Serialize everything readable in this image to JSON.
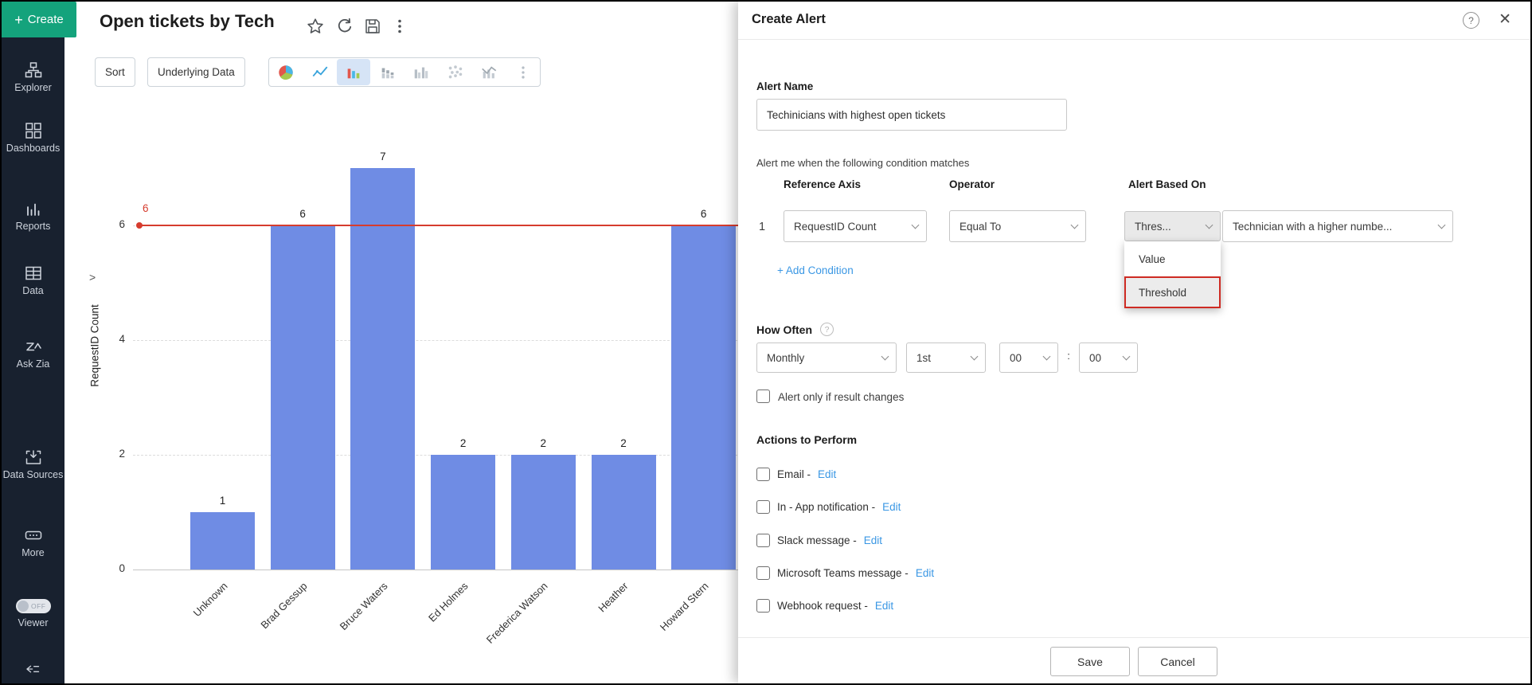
{
  "sidebar": {
    "create_button": {
      "plus_glyph": "+",
      "label": "Create"
    },
    "items": [
      {
        "icon": "explorer-icon",
        "label": "Explorer"
      },
      {
        "icon": "dashboards-icon",
        "label": "Dashboards"
      },
      {
        "icon": "reports-icon",
        "label": "Reports"
      },
      {
        "icon": "data-icon",
        "label": "Data"
      },
      {
        "icon": "ask-zia-icon",
        "label": "Ask Zia"
      },
      {
        "icon": "data-sources-icon",
        "label": "Data Sources"
      },
      {
        "icon": "more-icon",
        "label": "More"
      }
    ],
    "viewer": {
      "label": "Viewer",
      "state": "OFF"
    }
  },
  "header": {
    "title": "Open tickets by Tech",
    "icons": [
      "star-icon",
      "refresh-icon",
      "save-icon",
      "kebab-menu-icon"
    ]
  },
  "toolbar": {
    "sort_label": "Sort",
    "underlying_data_label": "Underlying Data",
    "chart_types": [
      {
        "icon": "pie-chart-icon",
        "selected": false
      },
      {
        "icon": "line-chart-icon",
        "selected": false
      },
      {
        "icon": "bar-chart-icon",
        "selected": true
      },
      {
        "icon": "stacked-bar-icon",
        "selected": false
      },
      {
        "icon": "grouped-bar-icon",
        "selected": false
      },
      {
        "icon": "scatter-plot-icon",
        "selected": false
      },
      {
        "icon": "combo-chart-icon",
        "selected": false
      },
      {
        "icon": "kebab-menu-icon",
        "selected": false
      }
    ]
  },
  "chart_data": {
    "type": "bar",
    "title": "Open tickets by Tech",
    "categories": [
      "Unknown",
      "Brad Gessup",
      "Bruce Waters",
      "Ed Holmes",
      "Frederica Watson",
      "Heather",
      "Howard Stern"
    ],
    "values": [
      1,
      6,
      7,
      2,
      2,
      2,
      6
    ],
    "xlabel": "",
    "ylabel": "RequestID Count",
    "y_axis_expander_glyph": ">",
    "yticks": [
      0,
      2,
      4,
      6
    ],
    "ylim": [
      0,
      7.6
    ],
    "grid": "dashed-horizontal",
    "bar_color": "#6f8ce4",
    "threshold": {
      "value": 6,
      "label": "6",
      "color": "#d63c2e"
    }
  },
  "panel": {
    "title": "Create Alert",
    "help_glyph": "?",
    "close_glyph": "✕",
    "alert_name": {
      "label": "Alert Name",
      "value": "Techinicians with highest open tickets"
    },
    "condition_intro": "Alert me when the following condition matches",
    "condition_columns": {
      "reference_axis": "Reference Axis",
      "operator": "Operator",
      "alert_based_on": "Alert Based On"
    },
    "condition_row": {
      "index": "1",
      "reference_axis": "RequestID Count",
      "operator": "Equal To",
      "based_on": "Thres...",
      "based_on_detail": "Technician with a higher numbe..."
    },
    "based_on_menu": {
      "items": [
        {
          "label": "Value",
          "highlighted": false
        },
        {
          "label": "Threshold",
          "highlighted": true
        }
      ]
    },
    "add_condition_label": "+ Add Condition",
    "how_often": {
      "label": "How Often",
      "frequency": "Monthly",
      "day": "1st",
      "hour": "00",
      "separator": ":",
      "minute": "00"
    },
    "alert_only_if_label": "Alert only if result changes",
    "actions": {
      "label": "Actions to Perform",
      "items": [
        {
          "label": "Email -",
          "edit_label": "Edit"
        },
        {
          "label": "In - App notification -",
          "edit_label": "Edit"
        },
        {
          "label": "Slack message -",
          "edit_label": "Edit"
        },
        {
          "label": "Microsoft Teams message -",
          "edit_label": "Edit"
        },
        {
          "label": "Webhook request -",
          "edit_label": "Edit"
        }
      ]
    },
    "footer": {
      "save_label": "Save",
      "cancel_label": "Cancel"
    }
  },
  "colors": {
    "create_green": "#14a37c",
    "sidebar_bg": "#18212f",
    "bar_blue": "#6f8ce4",
    "threshold_red": "#d63c2e",
    "link_blue": "#3a97e4",
    "selected_chart_type_bg": "#d6e4f6",
    "menu_highlight_border": "#ce2b23"
  }
}
